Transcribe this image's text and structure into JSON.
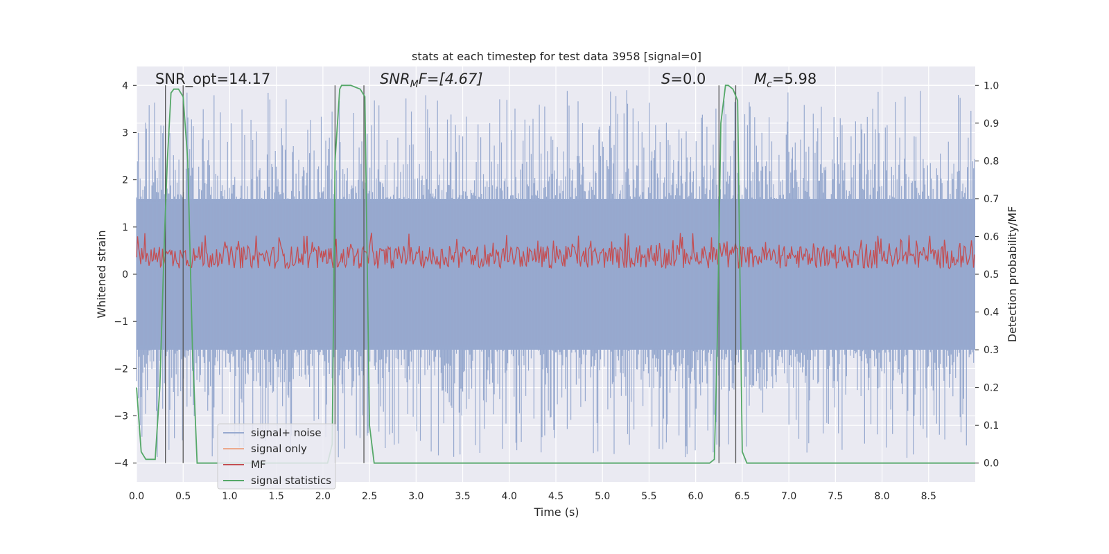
{
  "chart_data": {
    "type": "line",
    "title": "stats at each timestep for test data 3958 [signal=0]",
    "xlabel": "Time (s)",
    "ylabel_left": "Whitened strain",
    "ylabel_right": "Detection probability/MF",
    "xlim": [
      0.0,
      9.0
    ],
    "ylim_left": [
      -4.4,
      4.4
    ],
    "ylim_right": [
      -0.05,
      1.05
    ],
    "x_ticks": [
      "0.0",
      "0.5",
      "1.0",
      "1.5",
      "2.0",
      "2.5",
      "3.0",
      "3.5",
      "4.0",
      "4.5",
      "5.0",
      "5.5",
      "6.0",
      "6.5",
      "7.0",
      "7.5",
      "8.0",
      "8.5"
    ],
    "y_left_ticks": [
      "4",
      "3",
      "2",
      "1",
      "0",
      "−1",
      "−2",
      "−3",
      "−4"
    ],
    "y_right_ticks": [
      "1.0",
      "0.9",
      "0.8",
      "0.7",
      "0.6",
      "0.5",
      "0.4",
      "0.3",
      "0.2",
      "0.1",
      "0.0"
    ],
    "annotations": {
      "snr_opt": "SNR_opt=14.17",
      "snr_mf_base": "SNR",
      "snr_mf_sub": "M",
      "snr_mf_rest": "F=[4.67]",
      "s_var": "S",
      "s_val": "=0.0",
      "mc_base": "M",
      "mc_sub": "c",
      "mc_val": "=5.98"
    },
    "grid": true,
    "legend_position": "lower-left",
    "series": [
      {
        "name": "signal+ noise",
        "color": "#97a9cf",
        "axis": "left",
        "envelope": "dense noise, mostly within ±1.6, peaks near ±4"
      },
      {
        "name": "signal only",
        "color": "#eca88c",
        "axis": "left",
        "values": "zero (no signal)"
      },
      {
        "name": "MF",
        "color": "#c44e52",
        "axis": "right",
        "range": [
          0.5,
          0.64
        ]
      },
      {
        "name": "signal statistics",
        "color": "#55a868",
        "axis": "right",
        "x": [
          0.0,
          0.05,
          0.1,
          0.15,
          0.2,
          0.25,
          0.3,
          0.33,
          0.37,
          0.4,
          0.45,
          0.5,
          0.55,
          0.6,
          0.65,
          0.7,
          1.0,
          1.5,
          2.0,
          2.05,
          2.1,
          2.13,
          2.18,
          2.2,
          2.3,
          2.4,
          2.45,
          2.5,
          2.55,
          2.6,
          3.0,
          4.0,
          5.0,
          6.0,
          6.15,
          6.2,
          6.23,
          6.27,
          6.32,
          6.35,
          6.4,
          6.45,
          6.5,
          6.55,
          6.6,
          7.0,
          8.0,
          8.5,
          9.0
        ],
        "y": [
          0.2,
          0.03,
          0.01,
          0.01,
          0.01,
          0.2,
          0.6,
          0.8,
          0.98,
          0.99,
          0.99,
          0.97,
          0.8,
          0.3,
          0.0,
          0.0,
          0.0,
          0.0,
          0.0,
          0.0,
          0.05,
          0.8,
          0.99,
          1.0,
          1.0,
          0.99,
          0.97,
          0.1,
          0.0,
          0.0,
          0.0,
          0.0,
          0.0,
          0.0,
          0.0,
          0.01,
          0.3,
          0.9,
          1.0,
          1.0,
          0.99,
          0.96,
          0.03,
          0.0,
          0.0,
          0.0,
          0.0,
          0.0,
          0.0
        ]
      }
    ],
    "vertical_markers": [
      0.31,
      0.5,
      2.13,
      2.44,
      6.25,
      6.43
    ],
    "marker_color": "#555555"
  },
  "colors": {
    "plot_bg": "#eaeaf2",
    "grid": "#ffffff",
    "text": "#262626"
  }
}
